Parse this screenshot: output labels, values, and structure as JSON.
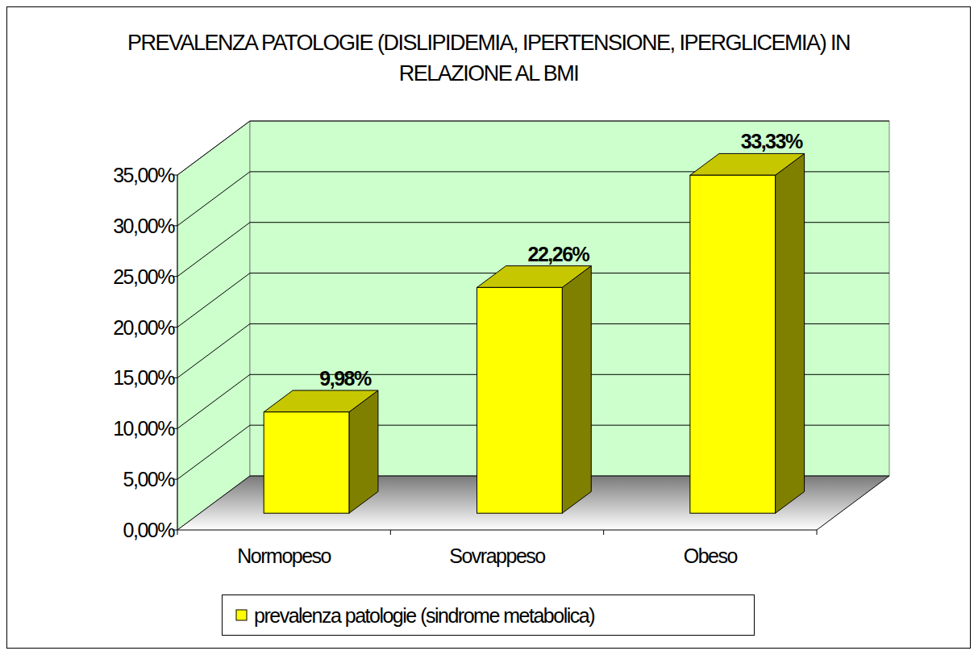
{
  "chart_data": {
    "type": "bar",
    "title": "PREVALENZA PATOLOGIE (DISLIPIDEMIA, IPERTENSIONE, IPERGLICEMIA) IN RELAZIONE AL BMI",
    "categories": [
      "Normopeso",
      "Sovrappeso",
      "Obeso"
    ],
    "series": [
      {
        "name": "prevalenza patologie (sindrome metabolica)",
        "color": "#ffff00",
        "values": [
          9.98,
          22.26,
          33.33
        ],
        "value_labels": [
          "9,98%",
          "22,26%",
          "33,33%"
        ]
      }
    ],
    "ylim": [
      0,
      35
    ],
    "yticks": [
      {
        "value": 0,
        "label": "0,00%"
      },
      {
        "value": 5,
        "label": "5,00%"
      },
      {
        "value": 10,
        "label": "10,00%"
      },
      {
        "value": 15,
        "label": "15,00%"
      },
      {
        "value": 20,
        "label": "20,00%"
      },
      {
        "value": 25,
        "label": "25,00%"
      },
      {
        "value": 30,
        "label": "30,00%"
      },
      {
        "value": 35,
        "label": "35,00%"
      }
    ],
    "grid": true,
    "legend": "bottom",
    "data_labels": true
  }
}
